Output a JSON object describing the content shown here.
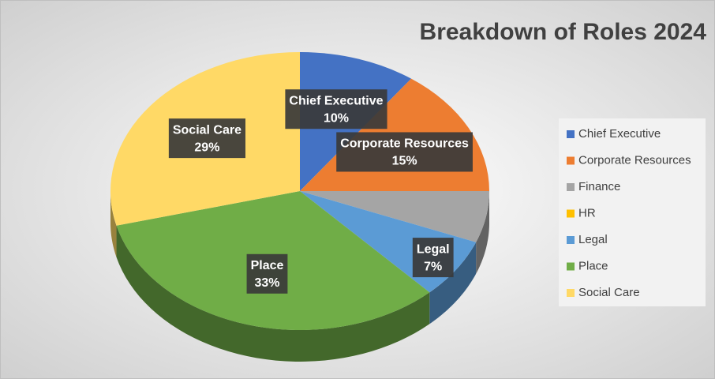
{
  "chart_data": {
    "type": "pie",
    "title": "Breakdown of Roles 2024",
    "categories": [
      "Chief Executive",
      "Corporate Resources",
      "Finance",
      "HR",
      "Legal",
      "Place",
      "Social Care"
    ],
    "values": [
      10,
      15,
      6,
      0,
      7,
      33,
      29
    ],
    "value_labels": [
      "10%",
      "15%",
      null,
      null,
      "7%",
      "33%",
      "29%"
    ],
    "colors": [
      "#4472c4",
      "#ed7d31",
      "#a5a5a5",
      "#ffc000",
      "#5b9bd5",
      "#70ad47",
      "#ffd966"
    ],
    "legend": "right"
  }
}
